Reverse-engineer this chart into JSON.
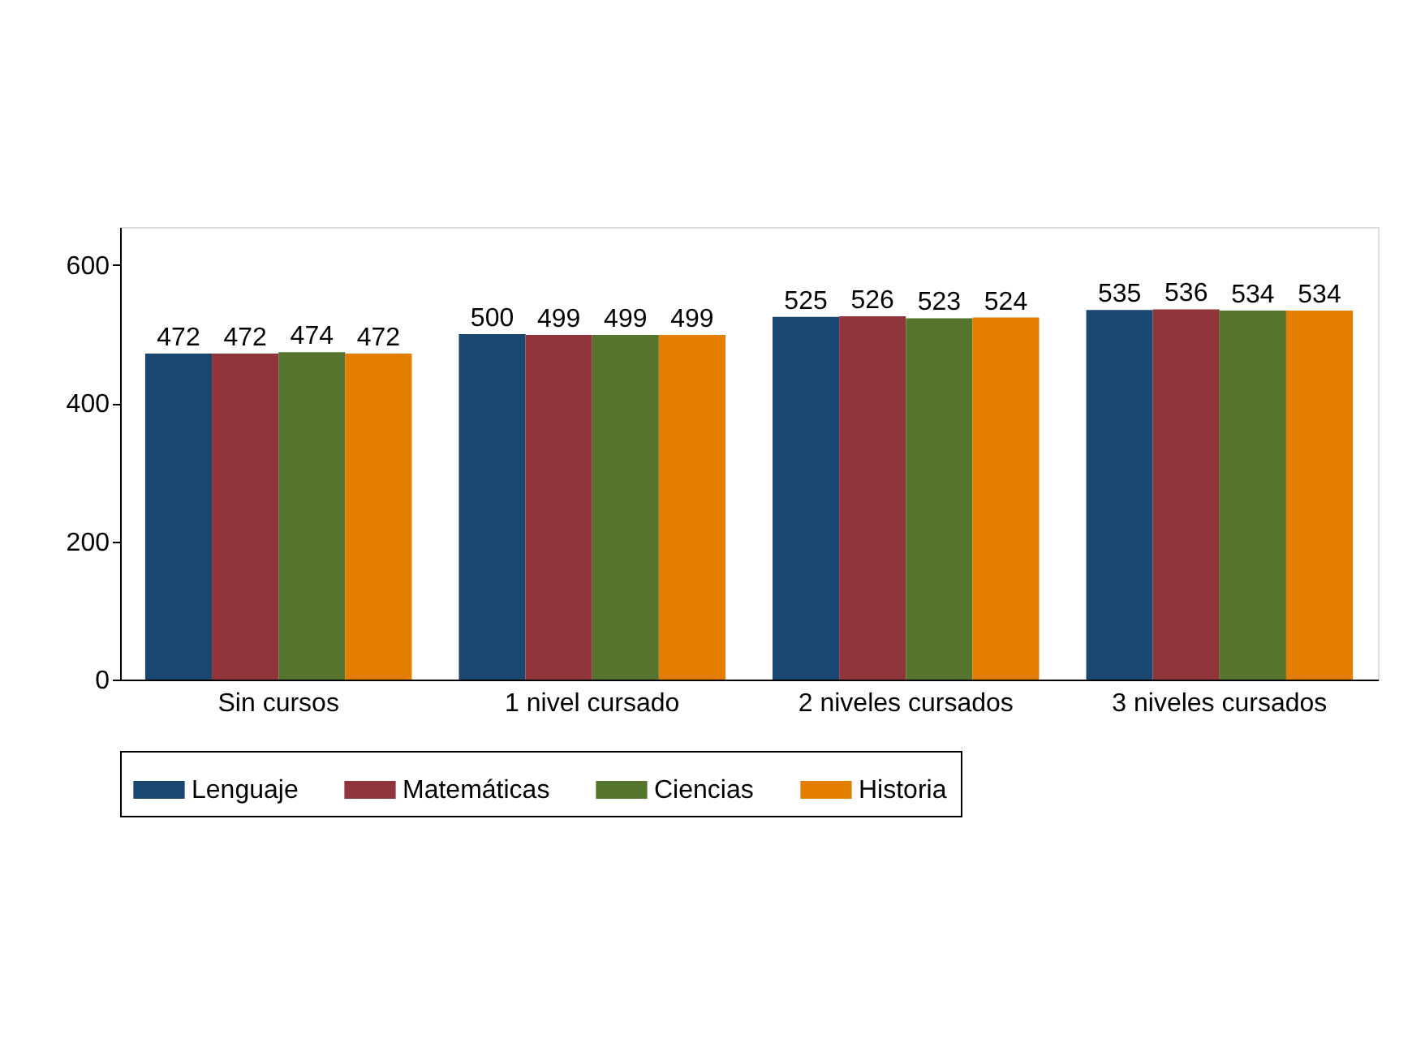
{
  "chart_data": {
    "type": "bar",
    "categories": [
      "Sin cursos",
      "1 nivel cursado",
      "2 niveles cursados",
      "3 niveles cursados"
    ],
    "series": [
      {
        "name": "Lenguaje",
        "color": "#1a476f",
        "values": [
          472,
          500,
          525,
          535
        ]
      },
      {
        "name": "Matemáticas",
        "color": "#90353b",
        "values": [
          472,
          499,
          526,
          536
        ]
      },
      {
        "name": "Ciencias",
        "color": "#55752f",
        "values": [
          474,
          499,
          523,
          534
        ]
      },
      {
        "name": "Historia",
        "color": "#e37e00",
        "values": [
          472,
          499,
          524,
          534
        ]
      }
    ],
    "ylim": [
      0,
      655
    ],
    "yticks": [
      0,
      200,
      400,
      600
    ],
    "data_labels": true,
    "grid": false,
    "legend": "bottom"
  }
}
